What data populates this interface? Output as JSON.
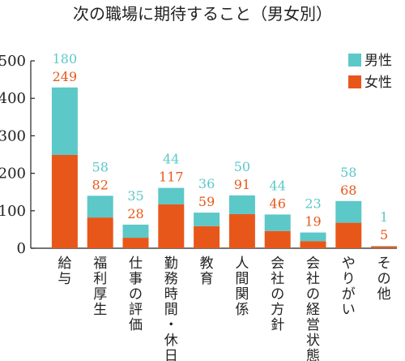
{
  "chart_data": {
    "type": "bar",
    "stacked": true,
    "title": "次の職場に期待すること（男女別）",
    "categories": [
      "給与",
      "福利厚生",
      "仕事の評価",
      "勤務時間・休日",
      "教育",
      "人間関係",
      "会社の方針",
      "会社の経営状態",
      "やりがい",
      "その他"
    ],
    "series": [
      {
        "name": "女性",
        "color": "#e8571a",
        "values": [
          249,
          82,
          28,
          117,
          59,
          91,
          46,
          19,
          68,
          5
        ]
      },
      {
        "name": "男性",
        "color": "#5cc8c8",
        "values": [
          180,
          58,
          35,
          44,
          36,
          50,
          44,
          23,
          58,
          1
        ]
      }
    ],
    "ylim": [
      0,
      500
    ],
    "yticks": [
      0,
      100,
      200,
      300,
      400,
      500
    ],
    "legend_position": "top-right",
    "grid": false
  }
}
